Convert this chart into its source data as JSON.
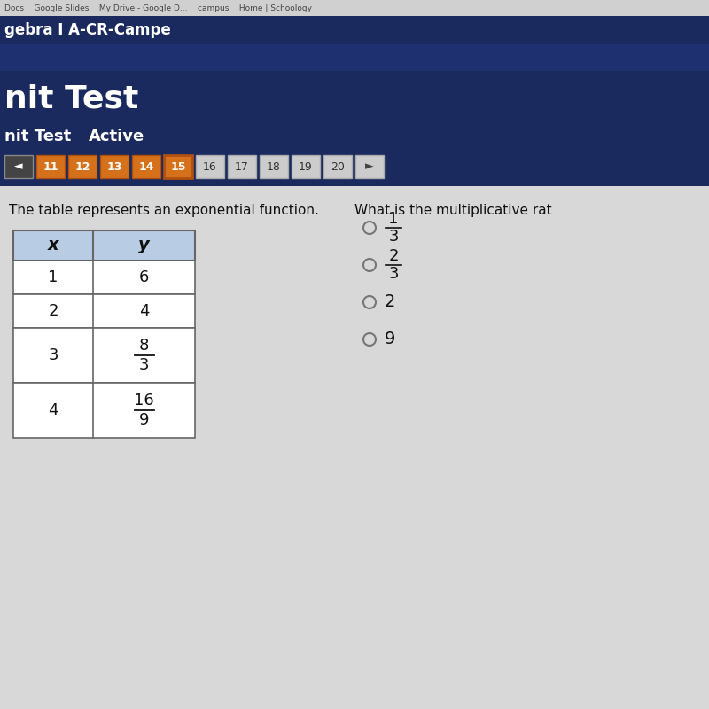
{
  "bg_browser_bar": "#d4d4d4",
  "bg_dark_navy": "#1a2a5e",
  "bg_medium_navy": "#1e3575",
  "bg_page_dark": "#1a2a5e",
  "bg_content": "#d8d8d8",
  "title_text": "nit Test",
  "subtitle_text": "nit Test",
  "active_text": "Active",
  "nav_numbers": [
    "11",
    "12",
    "13",
    "14",
    "15",
    "16",
    "17",
    "18",
    "19",
    "20"
  ],
  "active_num": "15",
  "highlighted_nums": [
    "11",
    "12",
    "13",
    "14"
  ],
  "question_text": "The table represents an exponential function.",
  "right_question_text": "What is the multiplicative rat",
  "table_x_values": [
    "1",
    "2",
    "3",
    "4"
  ],
  "table_y_numerators": [
    "6",
    "4",
    "8",
    "16"
  ],
  "table_y_denominators": [
    "",
    "",
    "3",
    "9"
  ],
  "answer_options": [
    {
      "numerator": "1",
      "denominator": "3"
    },
    {
      "numerator": "2",
      "denominator": "3"
    },
    {
      "numerator": "2",
      "denominator": ""
    },
    {
      "numerator": "9",
      "denominator": ""
    }
  ],
  "table_header_bg": "#b8cce4",
  "table_border_color": "#666666",
  "nav_color_highlighted": "#d4711a",
  "nav_color_active": "#d4711a",
  "nav_color_normal": "#cccccc",
  "nav_border_normal": "#aaaaaa",
  "top_bar_text": "gebra I A-CR-Campe",
  "browser_bar_text": "Docs    Google Slides    My Drive - Google D...    campus    Home | Schoology"
}
